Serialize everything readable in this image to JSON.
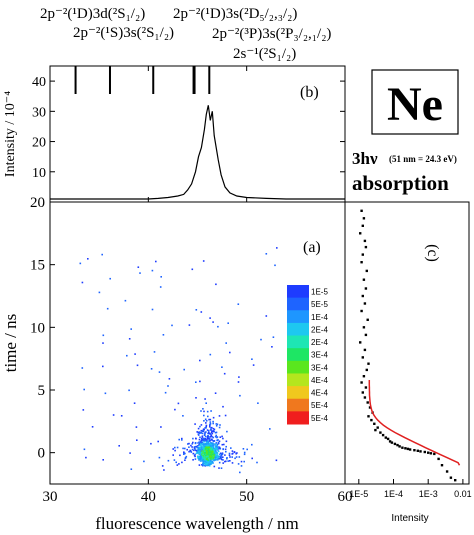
{
  "element_box": {
    "symbol": "Ne"
  },
  "excitation": {
    "label": "3hν",
    "note": "(51 nm = 24.3 eV)",
    "mode": "absorption"
  },
  "transitions": {
    "labels": [
      "2p⁻²(¹D)3d(²S₁/₂)",
      "2p⁻²(¹S)3s(²S₁/₂)",
      "2p⁻²(¹D)3s(²D₅/₂,₃/₂)",
      "2p⁻²(³P)3s(²P₃/₂,₁/₂)",
      "2s⁻¹(²S₁/₂)"
    ],
    "line_positions_nm": [
      32.6,
      36.1,
      40.5,
      44.6,
      44.7,
      46.2
    ]
  },
  "colorbar": {
    "labels": [
      "1E-5",
      "5E-5",
      "1E-4",
      "2E-4",
      "2E-4",
      "3E-4",
      "3E-4",
      "4E-4",
      "4E-4",
      "5E-4",
      "5E-4"
    ],
    "colors": [
      "#1e3cff",
      "#1e64ff",
      "#1e96ff",
      "#1ec8f0",
      "#1ee6b4",
      "#1ee664",
      "#5ae61e",
      "#b4e61e",
      "#f0c81e",
      "#f0781e",
      "#f01e1e"
    ]
  },
  "chart_data": [
    {
      "panel": "(b)",
      "type": "line",
      "ylabel": "Intensity / 10⁻⁴",
      "xlim": [
        30,
        60
      ],
      "ylim": [
        0,
        45
      ],
      "yticks": [
        10,
        20,
        30,
        40
      ],
      "x": [
        30,
        32,
        34,
        36,
        38,
        40,
        41,
        42,
        43,
        43.6,
        44,
        44.4,
        44.8,
        45.1,
        45.4,
        45.7,
        45.9,
        46.1,
        46.3,
        46.5,
        46.7,
        46.9,
        47.1,
        47.4,
        47.8,
        48.3,
        49,
        50,
        52,
        54,
        56,
        58,
        60
      ],
      "y": [
        1,
        1,
        1,
        1,
        1,
        1,
        1.2,
        1.5,
        2,
        2.5,
        4,
        6,
        10,
        15,
        18,
        24,
        29,
        32,
        27,
        30,
        22,
        18,
        14,
        9,
        5,
        3,
        2,
        1.5,
        1.2,
        1,
        1,
        1,
        1
      ]
    },
    {
      "panel": "(a)",
      "type": "scatter",
      "xlabel": "fluorescence wavelength / nm",
      "ylabel": "time / ns",
      "xlim": [
        30,
        60
      ],
      "ylim": [
        -2.5,
        20
      ],
      "xticks": [
        30,
        40,
        50,
        60
      ],
      "yticks": [
        0,
        5,
        10,
        15,
        20
      ],
      "cluster": {
        "center_nm": 46,
        "center_ns": 0,
        "points_approx": 1500
      }
    },
    {
      "panel": "(c)",
      "type": "scatter",
      "scale": "log-x",
      "xlabel": "Intensity",
      "xtick_labels": [
        "1E-5",
        "1E-4",
        "1E-3",
        "0.01"
      ],
      "xlim": [
        4e-06,
        0.015
      ],
      "ylim": [
        -2.5,
        20
      ],
      "fit_line": "red exponential decay",
      "x": [
        1.2e-05,
        1.4e-05,
        1.3e-05,
        1.1e-05,
        1.5e-05,
        1.6e-05,
        1.3e-05,
        1.2e-05,
        1.7e-05,
        1.4e-05,
        1.6e-05,
        1.3e-05,
        1.5e-05,
        1.2e-05,
        1.8e-05,
        1.4e-05,
        1.6e-05,
        1.1e-05,
        1.5e-05,
        1.3e-05,
        1.9e-05,
        1.7e-05,
        1.4e-05,
        1.2e-05,
        1.6e-05,
        1.3e-05,
        1.5e-05,
        1.8e-05,
        2.1e-05,
        2.5e-05,
        1.9e-05,
        2.3e-05,
        2.8e-05,
        3.5e-05,
        3e-05,
        4.2e-05,
        5e-05,
        6e-05,
        7e-05,
        8e-05,
        9e-05,
        0.00011,
        0.00013,
        0.00015,
        0.00018,
        0.00022,
        0.00026,
        0.0003,
        0.0004,
        0.0005,
        0.0006,
        0.0008,
        0.001,
        0.0012,
        0.0015,
        0.002,
        0.0025,
        0.0035,
        0.0045,
        0.006
      ],
      "y": [
        19.3,
        18.7,
        18.1,
        17.5,
        16.9,
        16.4,
        15.8,
        15.2,
        14.5,
        13.8,
        13.1,
        12.5,
        11.9,
        11.3,
        10.6,
        10,
        9.4,
        8.8,
        8.2,
        7.6,
        7.1,
        6.6,
        6.1,
        5.6,
        5.2,
        4.8,
        4.4,
        4,
        3.6,
        3.2,
        2.9,
        2.6,
        2.3,
        2,
        1.8,
        1.6,
        1.4,
        1.2,
        1.1,
        0.9,
        0.8,
        0.7,
        0.6,
        0.5,
        0.4,
        0.35,
        0.3,
        0.25,
        0.2,
        0.15,
        0.1,
        0.05,
        0,
        -0.05,
        -0.1,
        -0.5,
        -1,
        -1.5,
        -2,
        -2.2
      ]
    }
  ]
}
